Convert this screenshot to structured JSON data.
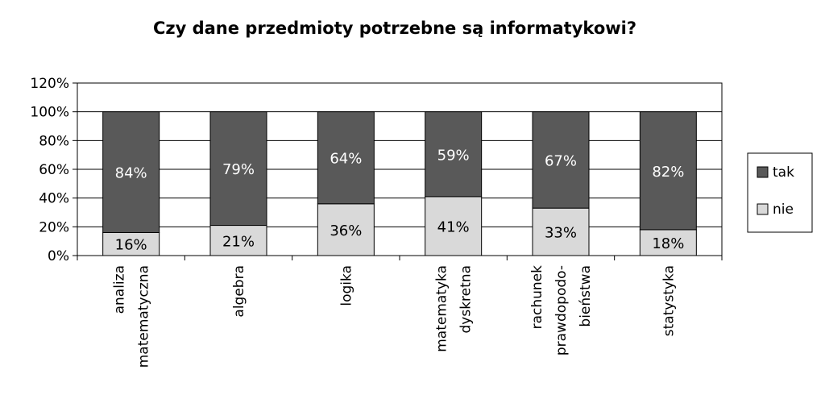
{
  "chart_data": {
    "type": "bar",
    "stacked": true,
    "title": "Czy dane przedmioty potrzebne są informatykowi?",
    "categories": [
      [
        "analiza",
        "matematyczna"
      ],
      [
        "algebra"
      ],
      [
        "logika"
      ],
      [
        "matematyka",
        "dyskretna"
      ],
      [
        "rachunek",
        "prawdopodo-",
        "bieństwa"
      ],
      [
        "statystyka"
      ]
    ],
    "series": [
      {
        "name": "nie",
        "color": "#d9d9d9",
        "label_color": "#000000",
        "values": [
          16,
          21,
          36,
          41,
          33,
          18
        ],
        "labels": [
          "16%",
          "21%",
          "36%",
          "41%",
          "33%",
          "18%"
        ]
      },
      {
        "name": "tak",
        "color": "#595959",
        "label_color": "#ffffff",
        "values": [
          84,
          79,
          64,
          59,
          67,
          82
        ],
        "labels": [
          "84%",
          "79%",
          "64%",
          "59%",
          "67%",
          "82%"
        ]
      }
    ],
    "ylim": [
      0,
      120
    ],
    "yticks": [
      "0%",
      "20%",
      "40%",
      "60%",
      "80%",
      "100%",
      "120%"
    ],
    "grid": true,
    "legend_position": "right",
    "legend_order": [
      "tak",
      "nie"
    ]
  }
}
